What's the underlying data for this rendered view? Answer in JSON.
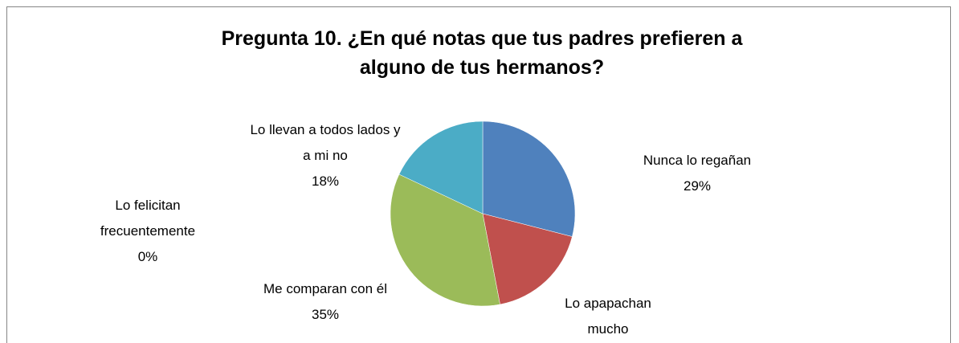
{
  "chart_data": {
    "type": "pie",
    "title": "Pregunta 10. ¿En qué notas que tus padres prefieren a alguno de tus hermanos?",
    "categories": [
      "Nunca lo regañan",
      "Lo apapachan mucho",
      "Me comparan con él",
      "Lo felicitan frecuentemente",
      "Lo llevan a todos lados y a mi no"
    ],
    "values": [
      29,
      18,
      35,
      0,
      18
    ],
    "value_labels": [
      "29%",
      null,
      "35%",
      "0%",
      "18%"
    ],
    "colors": [
      "#4f81bd",
      "#c0504d",
      "#9bbb59",
      "#8064a2",
      "#4bacc6"
    ]
  }
}
